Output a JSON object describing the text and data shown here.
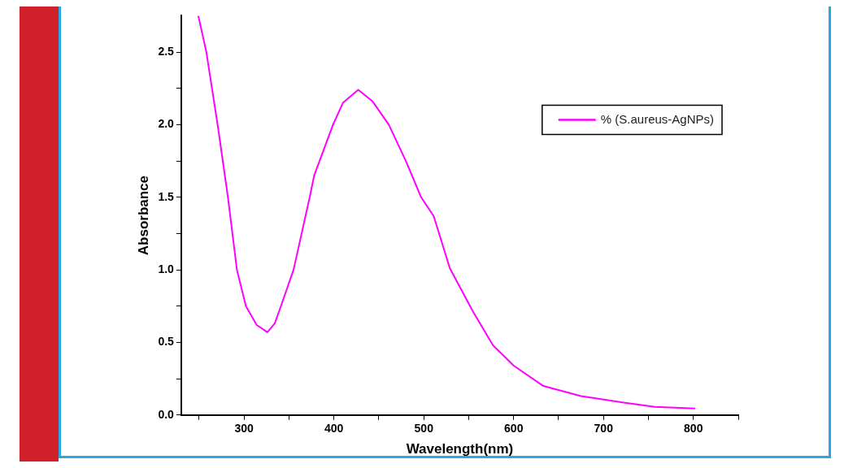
{
  "chart_data": {
    "type": "line",
    "xlabel": "Wavelength(nm)",
    "ylabel": "Absorbance",
    "x": [
      249,
      258,
      271,
      282,
      292,
      302,
      314,
      326,
      334,
      341,
      355,
      373,
      378,
      399,
      410,
      427,
      443,
      461,
      480,
      497,
      511,
      529,
      555,
      577,
      600,
      633,
      675,
      724,
      757,
      802
    ],
    "series": [
      {
        "name": "% (S.aureus-AgNPs)",
        "color": "#ff00ff",
        "values": [
          2.75,
          2.5,
          1.98,
          1.5,
          1.0,
          0.75,
          0.62,
          0.57,
          0.63,
          0.75,
          1.0,
          1.5,
          1.65,
          2.0,
          2.15,
          2.24,
          2.16,
          2.0,
          1.75,
          1.5,
          1.37,
          1.01,
          0.71,
          0.48,
          0.34,
          0.2,
          0.13,
          0.084,
          0.056,
          0.045
        ]
      }
    ],
    "xlim": [
      230,
      850
    ],
    "ylim": [
      0,
      2.75
    ],
    "xticks": [
      {
        "value": 250,
        "label": null
      },
      300,
      {
        "value": 350,
        "label": null
      },
      400,
      {
        "value": 450,
        "label": null
      },
      500,
      {
        "value": 550,
        "label": null
      },
      600,
      {
        "value": 650,
        "label": null
      },
      700,
      {
        "value": 750,
        "label": null
      },
      800,
      {
        "value": 850,
        "label": null
      }
    ],
    "yticks": [
      {
        "value": 0,
        "label": "0.0"
      },
      {
        "value": 0.25,
        "label": null
      },
      {
        "value": 0.5,
        "label": "0.5"
      },
      {
        "value": 0.75,
        "label": null
      },
      {
        "value": 1,
        "label": "1.0"
      },
      {
        "value": 1.25,
        "label": null
      },
      {
        "value": 1.5,
        "label": "1.5"
      },
      {
        "value": 1.75,
        "label": null
      },
      {
        "value": 2,
        "label": "2.0"
      },
      {
        "value": 2.25,
        "label": null
      },
      {
        "value": 2.5,
        "label": "2.5"
      }
    ],
    "grid": false,
    "legend": "top right",
    "marker": "none",
    "line_style": "solid"
  }
}
